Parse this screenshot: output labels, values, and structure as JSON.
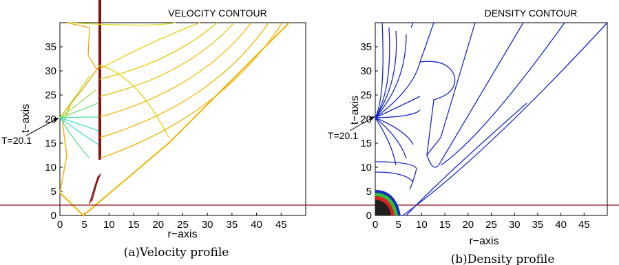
{
  "chart_data": [
    {
      "type": "line",
      "title": "VELOCITY CONTOUR",
      "caption": "(a)Velocity profile",
      "xlabel": "r−axis",
      "ylabel": "t−axis",
      "xlim": [
        0,
        50
      ],
      "ylim": [
        0,
        40
      ],
      "xticks": [
        0,
        5,
        10,
        15,
        20,
        25,
        30,
        35,
        40,
        45
      ],
      "yticks": [
        0,
        5,
        10,
        15,
        20,
        25,
        30,
        35
      ],
      "annotation": {
        "text": "T=20.1",
        "x": 0,
        "y": 20.1
      },
      "grid": false,
      "colors": {
        "fan": "#3ce0c8",
        "mid": "#d8e020",
        "outer": "#f0b400",
        "shock": "#8b1010"
      }
    },
    {
      "type": "line",
      "title": "DENSITY CONTOUR",
      "caption": "(b)Density profile",
      "xlabel": "r−axis",
      "ylabel": "t−axis",
      "xlim": [
        0,
        50
      ],
      "ylim": [
        0,
        40
      ],
      "xticks": [
        0,
        5,
        10,
        15,
        20,
        25,
        30,
        35,
        40,
        45
      ],
      "yticks": [
        0,
        5,
        10,
        15,
        20,
        25,
        30,
        35
      ],
      "annotation": {
        "text": "T=20.1",
        "x": 0,
        "y": 20.1
      },
      "grid": false,
      "colors": {
        "contour": "#1428c8"
      }
    }
  ]
}
